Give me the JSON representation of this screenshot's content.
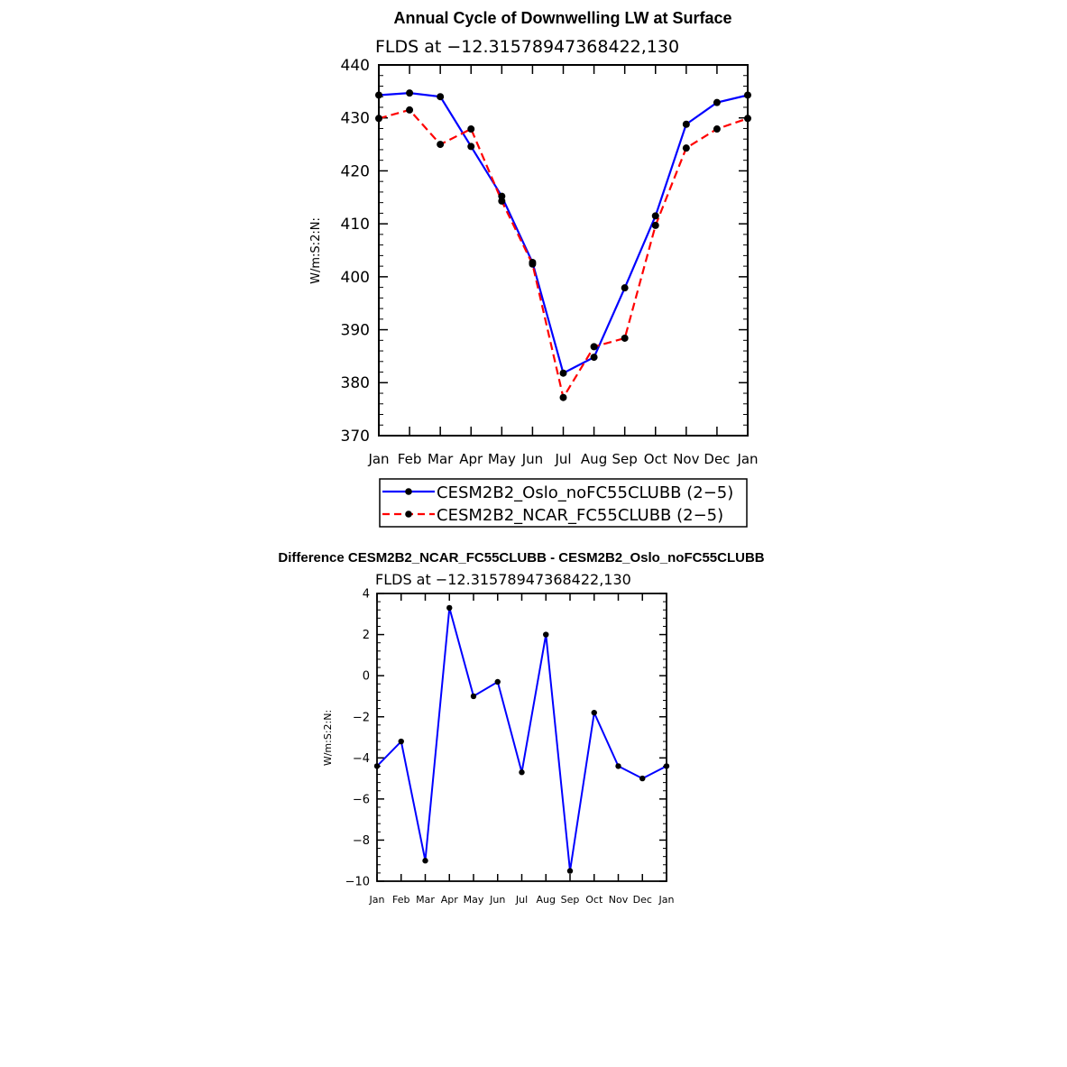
{
  "chart_data": [
    {
      "type": "line",
      "title": "Annual Cycle of Downwelling LW at Surface",
      "subtitle": "FLDS at −12.31578947368422,130",
      "xlabel": "",
      "ylabel": "W/m:S:2:N:",
      "categories": [
        "Jan",
        "Feb",
        "Mar",
        "Apr",
        "May",
        "Jun",
        "Jul",
        "Aug",
        "Sep",
        "Oct",
        "Nov",
        "Dec",
        "Jan"
      ],
      "ylim": [
        370,
        440
      ],
      "yticks": [
        370,
        380,
        390,
        400,
        410,
        420,
        430,
        440
      ],
      "yticks_label": [
        "370",
        "380",
        "390",
        "400",
        "410",
        "420",
        "430",
        "440"
      ],
      "legend": "bottom",
      "series": [
        {
          "name": "CESM2B2_Oslo_noFC55CLUBB (2−5)",
          "color": "#0000ff",
          "dash": "solid",
          "values": [
            434.3,
            434.7,
            434.0,
            424.6,
            415.2,
            402.7,
            381.8,
            384.8,
            397.9,
            411.5,
            428.8,
            432.9,
            434.3
          ]
        },
        {
          "name": "CESM2B2_NCAR_FC55CLUBB (2−5)",
          "color": "#ff0000",
          "dash": "dashed",
          "values": [
            429.9,
            431.5,
            425.0,
            427.9,
            414.3,
            402.4,
            377.2,
            386.8,
            388.4,
            409.7,
            424.3,
            427.9,
            429.9
          ]
        }
      ]
    },
    {
      "type": "line",
      "title": "Difference CESM2B2_NCAR_FC55CLUBB - CESM2B2_Oslo_noFC55CLUBB",
      "subtitle": "FLDS at −12.31578947368422,130",
      "xlabel": "",
      "ylabel": "W/m:S:2:N:",
      "categories": [
        "Jan",
        "Feb",
        "Mar",
        "Apr",
        "May",
        "Jun",
        "Jul",
        "Aug",
        "Sep",
        "Oct",
        "Nov",
        "Dec",
        "Jan"
      ],
      "ylim": [
        -10,
        4
      ],
      "yticks": [
        -10,
        -8,
        -6,
        -4,
        -2,
        0,
        2,
        4
      ],
      "yticks_label": [
        "−10",
        "−8",
        "−6",
        "−4",
        "−2",
        "0",
        "2",
        "4"
      ],
      "series": [
        {
          "name": "Difference",
          "color": "#0000ff",
          "dash": "solid",
          "values": [
            -4.4,
            -3.2,
            -9.0,
            3.3,
            -1.0,
            -0.3,
            -4.7,
            2.0,
            -9.5,
            -1.8,
            -4.4,
            -5.0,
            -4.4
          ]
        }
      ]
    }
  ]
}
